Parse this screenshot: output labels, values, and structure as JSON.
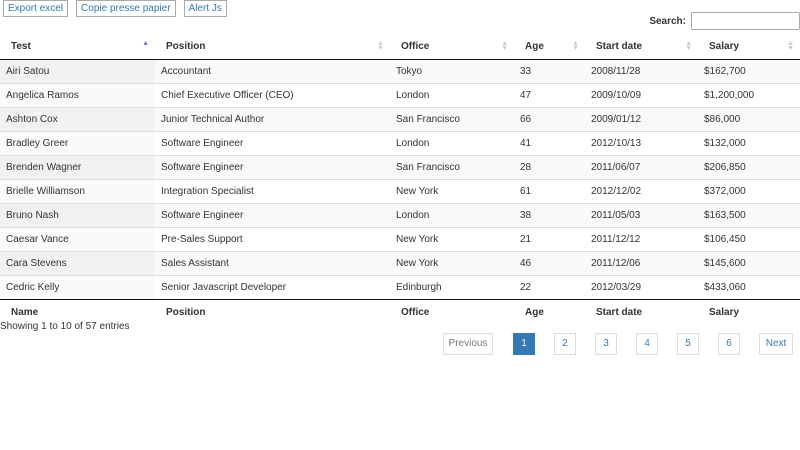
{
  "buttons": [
    "Export excel",
    "Copie presse papier",
    "Alert Js"
  ],
  "search": {
    "label": "Search:",
    "value": ""
  },
  "header": [
    "Test",
    "Position",
    "Office",
    "Age",
    "Start date",
    "Salary"
  ],
  "footer": [
    "Name",
    "Position",
    "Office",
    "Age",
    "Start date",
    "Salary"
  ],
  "sort": {
    "column": "Test",
    "direction": "ascending"
  },
  "rows": [
    [
      "Airi Satou",
      "Accountant",
      "Tokyo",
      "33",
      "2008/11/28",
      "$162,700"
    ],
    [
      "Angelica Ramos",
      "Chief Executive Officer (CEO)",
      "London",
      "47",
      "2009/10/09",
      "$1,200,000"
    ],
    [
      "Ashton Cox",
      "Junior Technical Author",
      "San Francisco",
      "66",
      "2009/01/12",
      "$86,000"
    ],
    [
      "Bradley Greer",
      "Software Engineer",
      "London",
      "41",
      "2012/10/13",
      "$132,000"
    ],
    [
      "Brenden Wagner",
      "Software Engineer",
      "San Francisco",
      "28",
      "2011/06/07",
      "$206,850"
    ],
    [
      "Brielle Williamson",
      "Integration Specialist",
      "New York",
      "61",
      "2012/12/02",
      "$372,000"
    ],
    [
      "Bruno Nash",
      "Software Engineer",
      "London",
      "38",
      "2011/05/03",
      "$163,500"
    ],
    [
      "Caesar Vance",
      "Pre-Sales Support",
      "New York",
      "21",
      "2011/12/12",
      "$106,450"
    ],
    [
      "Cara Stevens",
      "Sales Assistant",
      "New York",
      "46",
      "2011/12/06",
      "$145,600"
    ],
    [
      "Cedric Kelly",
      "Senior Javascript Developer",
      "Edinburgh",
      "22",
      "2012/03/29",
      "$433,060"
    ]
  ],
  "info": "Showing 1 to 10 of 57 entries",
  "pagination": {
    "previous": "Previous",
    "pages": [
      "1",
      "2",
      "3",
      "4",
      "5",
      "6"
    ],
    "current": "1",
    "next": "Next"
  },
  "colors": {
    "accent": "#337ab7"
  }
}
